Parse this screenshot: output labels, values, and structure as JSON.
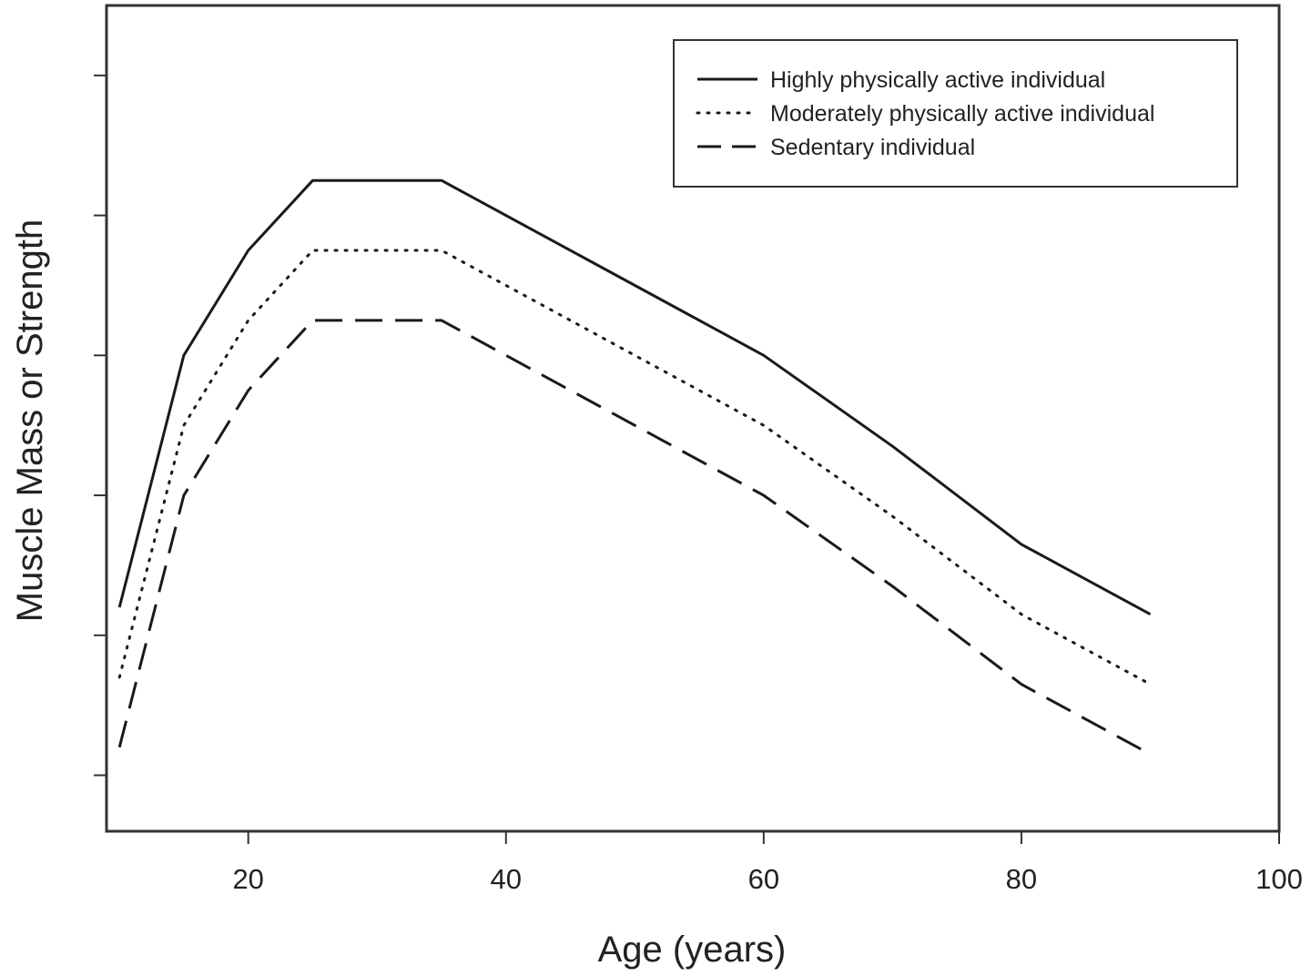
{
  "chart_data": {
    "type": "line",
    "title": "",
    "xlabel": "Age (years)",
    "ylabel": "Muscle Mass or Strength",
    "xlim": [
      9,
      100
    ],
    "ylim": [
      0.6,
      6.5
    ],
    "x_ticks": [
      20,
      40,
      60,
      80,
      100
    ],
    "x_tick_labels": [
      "20",
      "40",
      "60",
      "80",
      "100"
    ],
    "y_ticks": [
      1,
      2,
      3,
      4,
      5,
      6
    ],
    "y_tick_labels": [
      "",
      "",
      "",
      "",
      "",
      ""
    ],
    "grid": false,
    "legend_position": "top-right",
    "x": [
      10,
      15,
      20,
      25,
      35,
      60,
      70,
      80,
      90
    ],
    "series": [
      {
        "name": "Highly physically active individual",
        "style": "solid",
        "values": [
          2.2,
          4.0,
          4.75,
          5.25,
          5.25,
          4.0,
          3.35,
          2.65,
          2.15
        ]
      },
      {
        "name": "Moderately physically active individual",
        "style": "dotted",
        "values": [
          1.7,
          3.5,
          4.25,
          4.75,
          4.75,
          3.5,
          2.85,
          2.15,
          1.65
        ]
      },
      {
        "name": "Sedentary individual",
        "style": "dashed",
        "values": [
          1.2,
          3.0,
          3.75,
          4.25,
          4.25,
          3.0,
          2.35,
          1.65,
          1.15
        ]
      }
    ],
    "colors": {
      "line": "#1a1a1a",
      "frame": "#333333",
      "background": "#ffffff"
    }
  }
}
